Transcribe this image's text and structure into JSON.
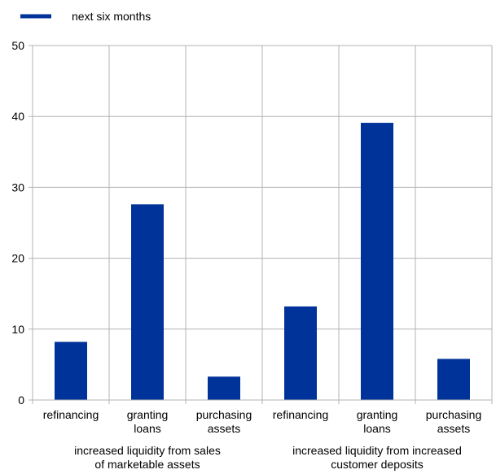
{
  "chart_data": {
    "type": "bar",
    "ylim": [
      0,
      50
    ],
    "yticks": [
      0,
      10,
      20,
      30,
      40,
      50
    ],
    "grid": true,
    "legend_position": "top-left",
    "groups": [
      {
        "label_lines": [
          "increased liquidity from sales",
          "of marketable assets"
        ],
        "categories": [
          {
            "label_lines": [
              "refinancing"
            ]
          },
          {
            "label_lines": [
              "granting",
              "loans"
            ]
          },
          {
            "label_lines": [
              "purchasing",
              "assets"
            ]
          }
        ]
      },
      {
        "label_lines": [
          "increased liquidity from increased",
          "customer deposits"
        ],
        "categories": [
          {
            "label_lines": [
              "refinancing"
            ]
          },
          {
            "label_lines": [
              "granting",
              "loans"
            ]
          },
          {
            "label_lines": [
              "purchasing",
              "assets"
            ]
          }
        ]
      }
    ],
    "series": [
      {
        "name": "next six months",
        "color": "#003399",
        "values": [
          8.2,
          27.6,
          3.3,
          13.2,
          39.1,
          5.8
        ]
      }
    ]
  }
}
